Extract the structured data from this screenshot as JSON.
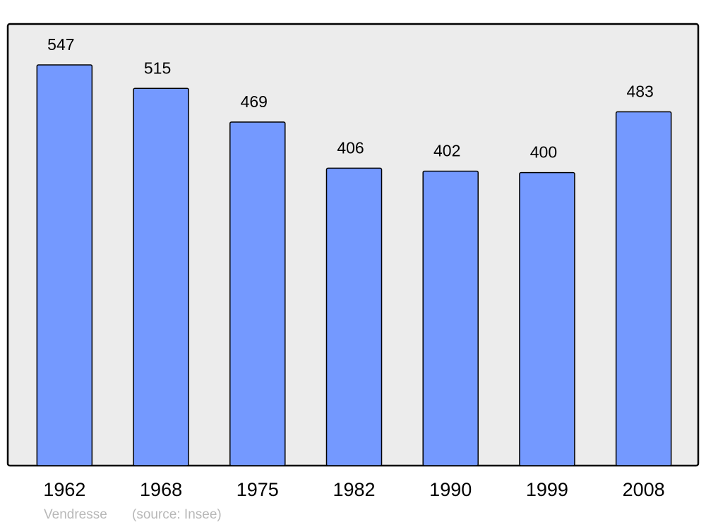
{
  "chart_data": {
    "type": "bar",
    "categories": [
      "1962",
      "1968",
      "1975",
      "1982",
      "1990",
      "1999",
      "2008"
    ],
    "values": [
      547,
      515,
      469,
      406,
      402,
      400,
      483
    ],
    "color": "#7499ff",
    "place": "Vendresse",
    "source": "(source: Insee)"
  }
}
